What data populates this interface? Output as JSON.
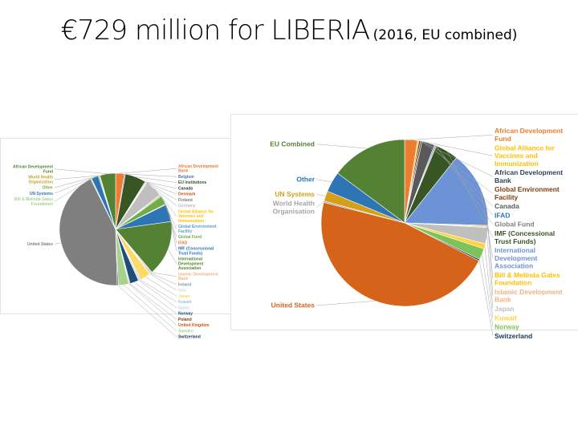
{
  "slide": {
    "title": "€729 million for LIBERIA",
    "subtitle": "(2016, EU combined)"
  },
  "chart_data": [
    {
      "type": "pie",
      "unit": "share of total (%)",
      "slices": [
        {
          "label": "African Development Bank",
          "value": 2.5,
          "color": "#ED7D31"
        },
        {
          "label": "Belgium",
          "value": 0.3,
          "color": "#4472C4"
        },
        {
          "label": "EU Institutions",
          "value": 6,
          "color": "#375623"
        },
        {
          "label": "Canada",
          "value": 0.2,
          "color": "#333F50"
        },
        {
          "label": "Denmark",
          "value": 0.2,
          "color": "#C55A11"
        },
        {
          "label": "Finland",
          "value": 0.2,
          "color": "#7F7F7F"
        },
        {
          "label": "Germany",
          "value": 5,
          "color": "#BFBFBF"
        },
        {
          "label": "Global Alliance for Vaccines and Immunization",
          "value": 0.3,
          "color": "#FFC000"
        },
        {
          "label": "Global Environment Facility",
          "value": 0.3,
          "color": "#5B9BD5"
        },
        {
          "label": "Global Fund",
          "value": 2.5,
          "color": "#70AD47"
        },
        {
          "label": "IFAD",
          "value": 0.2,
          "color": "#ED7D31"
        },
        {
          "label": "IMF (Concessional Trust Funds)",
          "value": 5,
          "color": "#2E75B6"
        },
        {
          "label": "International Development Association",
          "value": 16,
          "color": "#548235"
        },
        {
          "label": "Islamic Development Bank",
          "value": 0.3,
          "color": "#F4B183"
        },
        {
          "label": "Ireland",
          "value": 0.3,
          "color": "#8497B0"
        },
        {
          "label": "Italy",
          "value": 0.2,
          "color": "#D9D9D9"
        },
        {
          "label": "Japan",
          "value": 3,
          "color": "#FFD966"
        },
        {
          "label": "Kuwait",
          "value": 0.3,
          "color": "#9DC3E6"
        },
        {
          "label": "Spain",
          "value": 0.4,
          "color": "#BDD7EE"
        },
        {
          "label": "Norway",
          "value": 2.5,
          "color": "#1F4E79"
        },
        {
          "label": "Poland",
          "value": 0.2,
          "color": "#843C0C"
        },
        {
          "label": "United Kingdom",
          "value": 0.2,
          "color": "#C55A11"
        },
        {
          "label": "Sweden",
          "value": 3,
          "color": "#A9D18E"
        },
        {
          "label": "Switzerland",
          "value": 0.3,
          "color": "#203864"
        },
        {
          "label": "United States",
          "value": 43,
          "color": "#7F7F7F"
        },
        {
          "label": "Bill & Melinda Gates Foundation",
          "value": 0.3,
          "color": "#A9D18E"
        },
        {
          "label": "UN Systems",
          "value": 2,
          "color": "#2E75B6"
        },
        {
          "label": "Other",
          "value": 0.3,
          "color": "#70AD47"
        },
        {
          "label": "World Health Organization",
          "value": 0.2,
          "color": "#C9A227"
        },
        {
          "label": "African Development Fund",
          "value": 4.5,
          "color": "#548235"
        }
      ]
    },
    {
      "type": "pie",
      "unit": "share of total (%)",
      "slices": [
        {
          "label": "African Development Fund",
          "value": 2.5,
          "color": "#ED7D31"
        },
        {
          "label": "Global Alliance for Vaccines and Immunization",
          "value": 0.3,
          "color": "#FFC000"
        },
        {
          "label": "African Development Bank",
          "value": 0.3,
          "color": "#333F50"
        },
        {
          "label": "Global Environment Facility",
          "value": 0.3,
          "color": "#843C0C"
        },
        {
          "label": "Canada",
          "value": 2.5,
          "color": "#595959"
        },
        {
          "label": "IFAD",
          "value": 0.2,
          "color": "#2E75B6"
        },
        {
          "label": "Global Fund",
          "value": 0.2,
          "color": "#7F7F7F"
        },
        {
          "label": "IMF (Concessional Trust Funds)",
          "value": 4.5,
          "color": "#375623"
        },
        {
          "label": "International Development Association",
          "value": 15,
          "color": "#6C93D6"
        },
        {
          "label": "Bill & Melinda Gates Foundation",
          "value": 0.2,
          "color": "#FFC000"
        },
        {
          "label": "Islamic Development Bank",
          "value": 0.2,
          "color": "#F4B183"
        },
        {
          "label": "Japan",
          "value": 3.2,
          "color": "#BFBFBF"
        },
        {
          "label": "Kuwait",
          "value": 1,
          "color": "#FFD33F"
        },
        {
          "label": "Norway",
          "value": 2.2,
          "color": "#7CC35A"
        },
        {
          "label": "Switzerland",
          "value": 0.3,
          "color": "#203864"
        },
        {
          "label": "United States",
          "value": 47,
          "color": "#D5631A"
        },
        {
          "label": "World Health Organisation",
          "value": 0.3,
          "color": "#A5A5A5"
        },
        {
          "label": "UN Systems",
          "value": 2,
          "color": "#D4A017"
        },
        {
          "label": "Other",
          "value": 4,
          "color": "#2E75B6"
        },
        {
          "label": "EU Combined",
          "value": 15,
          "color": "#548235"
        }
      ]
    }
  ]
}
